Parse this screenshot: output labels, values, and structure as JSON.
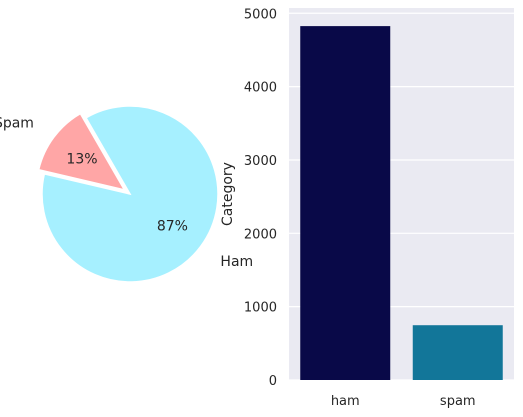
{
  "chart_data": [
    {
      "type": "pie",
      "labels": [
        "Spam",
        "Ham"
      ],
      "values": [
        13,
        87
      ],
      "value_labels": [
        "13%",
        "87%"
      ],
      "colors": [
        "#ffa6a6",
        "#a6f0ff"
      ],
      "explode": true,
      "title": ""
    },
    {
      "type": "bar",
      "categories": [
        "ham",
        "spam"
      ],
      "values": [
        4825,
        747
      ],
      "colors": [
        "#090948",
        "#127699"
      ],
      "ylabel": "Category",
      "xlabel": "",
      "ylim": [
        0,
        5072
      ],
      "yticks": [
        0,
        1000,
        2000,
        3000,
        4000,
        5000
      ],
      "ytick_labels": [
        "0",
        "1000",
        "2000",
        "3000",
        "4000",
        "5000"
      ],
      "grid": true,
      "axes_background": "#eaeaf2"
    }
  ]
}
